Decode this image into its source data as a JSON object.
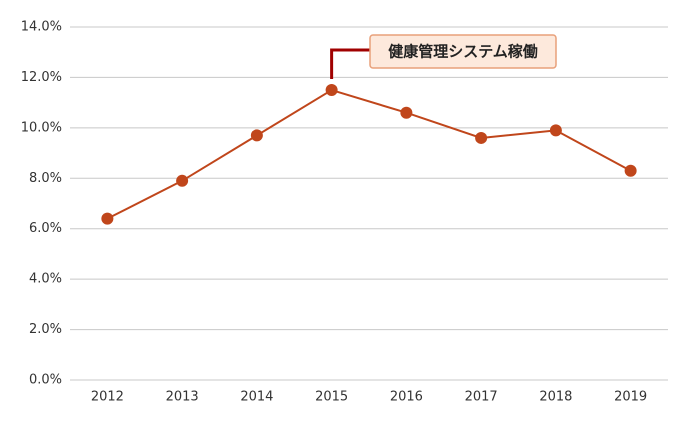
{
  "chart_data": {
    "type": "line",
    "categories": [
      "2012",
      "2013",
      "2014",
      "2015",
      "2016",
      "2017",
      "2018",
      "2019"
    ],
    "values": [
      6.4,
      7.9,
      9.7,
      11.5,
      10.6,
      9.6,
      9.9,
      8.3
    ],
    "color": "#c0461b",
    "ylim": [
      0,
      14
    ],
    "yticks": [
      {
        "value": 0,
        "label": "0.0%"
      },
      {
        "value": 2,
        "label": "2.0%"
      },
      {
        "value": 4,
        "label": "4.0%"
      },
      {
        "value": 6,
        "label": "6.0%"
      },
      {
        "value": 8,
        "label": "8.0%"
      },
      {
        "value": 10,
        "label": "10.0%"
      },
      {
        "value": 12,
        "label": "12.0%"
      },
      {
        "value": 14,
        "label": "14.0%"
      }
    ],
    "grid": true,
    "annotation": "健康管理システム稼働"
  }
}
